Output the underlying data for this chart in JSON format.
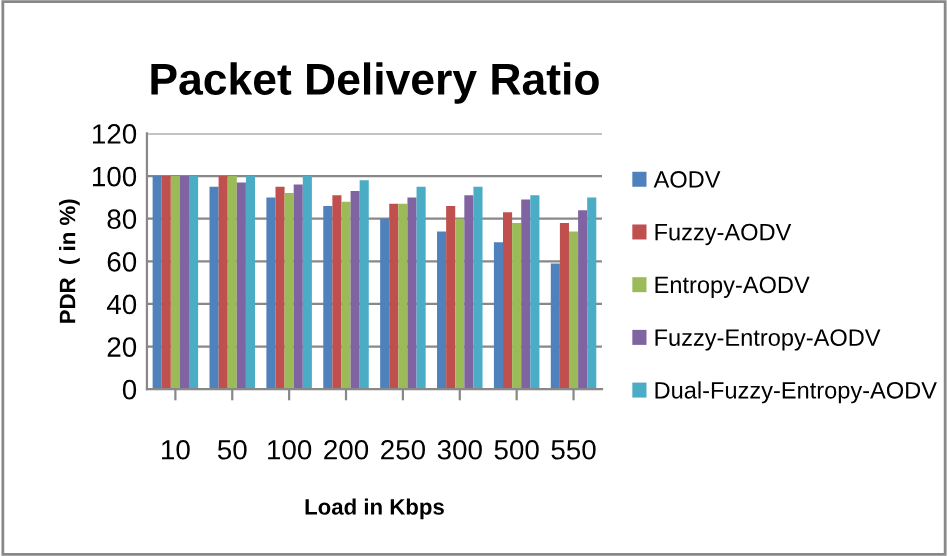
{
  "chart_data": {
    "type": "bar",
    "title": "Packet Delivery Ratio",
    "xlabel": "Load in Kbps",
    "ylabel": "PDR  ( in %)",
    "categories": [
      "10",
      "50",
      "100",
      "200",
      "250",
      "300",
      "500",
      "550"
    ],
    "series": [
      {
        "name": "AODV",
        "color": "#4f81bd",
        "values": [
          100,
          95,
          90,
          86,
          80,
          74,
          69,
          59
        ]
      },
      {
        "name": "Fuzzy-AODV",
        "color": "#c0504d",
        "values": [
          100,
          100,
          95,
          91,
          87,
          86,
          83,
          78
        ]
      },
      {
        "name": "Entropy-AODV",
        "color": "#9bbb59",
        "values": [
          100,
          100,
          92,
          88,
          87,
          80,
          78,
          74
        ]
      },
      {
        "name": "Fuzzy-Entropy-AODV",
        "color": "#8064a2",
        "values": [
          100,
          97,
          96,
          93,
          90,
          91,
          89,
          84
        ]
      },
      {
        "name": "Dual-Fuzzy-Entropy-AODV",
        "color": "#4bacc6",
        "values": [
          100,
          100,
          100,
          98,
          95,
          95,
          91,
          90
        ]
      }
    ],
    "ylim": [
      0,
      120
    ],
    "yticks": [
      0,
      20,
      40,
      60,
      80,
      100,
      120
    ],
    "grid": "y",
    "legend": "right"
  }
}
